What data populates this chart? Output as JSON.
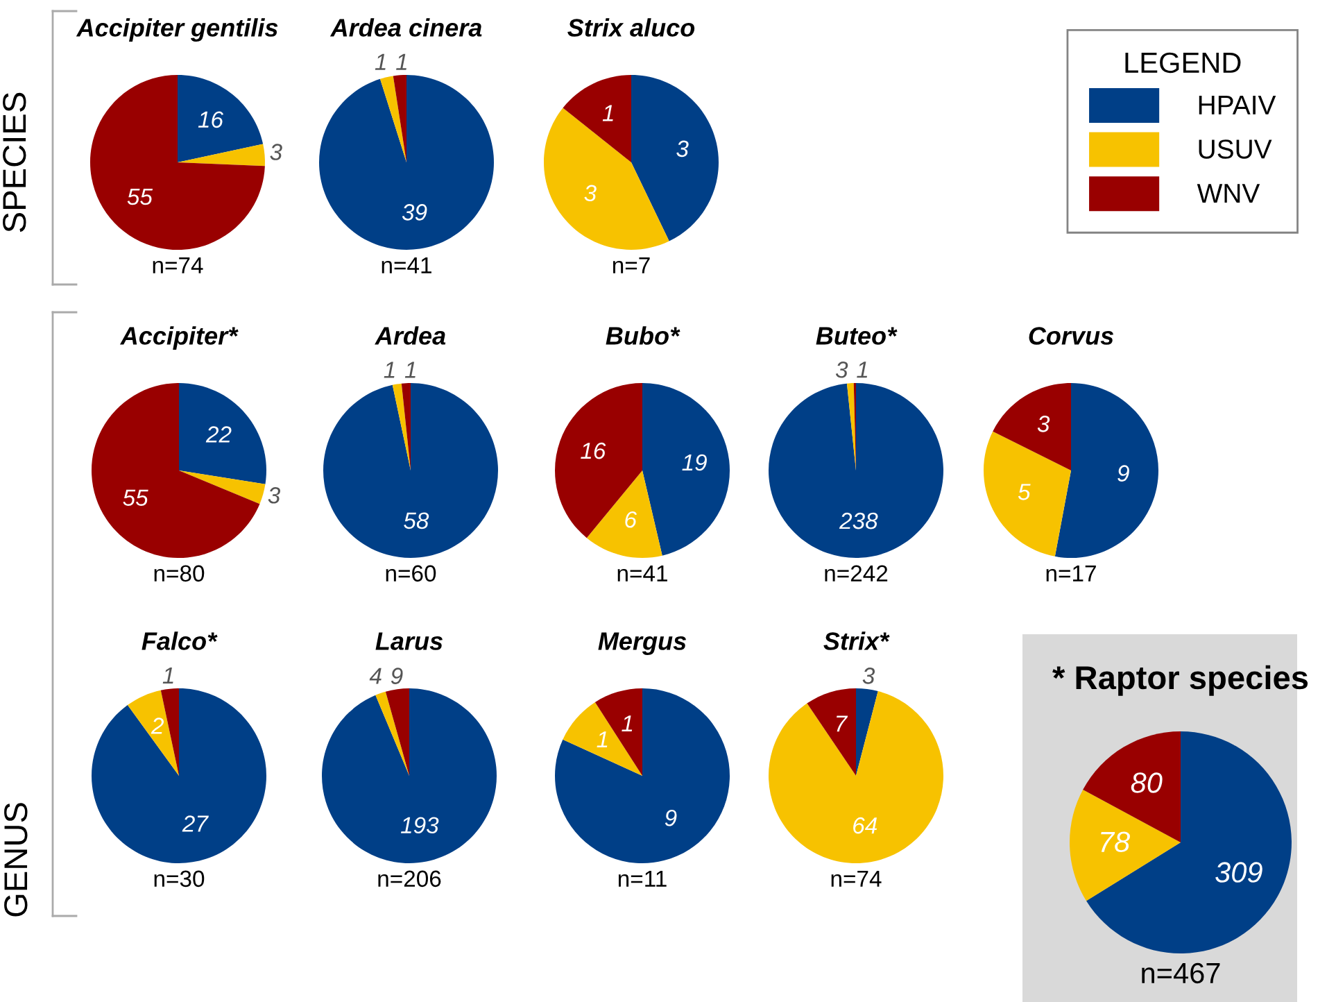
{
  "chart_data": [
    {
      "type": "pie",
      "title": "Accipiter gentilis",
      "ylabel": "SPECIES",
      "categories": [
        "HPAIV",
        "USUV",
        "WNV"
      ],
      "values": [
        16,
        3,
        55
      ],
      "colors": [
        "#003f87",
        "#f7c200",
        "#990000"
      ],
      "data_labels": true,
      "annotations": [
        "n=74"
      ],
      "legend": "right",
      "legend_title": "LEGEND"
    },
    {
      "type": "pie",
      "title": "Ardea cinera",
      "categories": [
        null,
        null,
        null
      ],
      "values": [
        39,
        1,
        1
      ],
      "colors": [
        "#003f87",
        "#f7c200",
        "#990000"
      ],
      "data_labels": true,
      "annotations": [
        "n=41"
      ]
    },
    {
      "type": "pie",
      "title": "Strix aluco",
      "categories": [
        null,
        null,
        null
      ],
      "values": [
        3,
        3,
        1
      ],
      "colors": [
        "#003f87",
        "#f7c200",
        "#990000"
      ],
      "data_labels": true,
      "annotations": [
        "n=7"
      ]
    },
    {
      "type": "pie",
      "title": "Accipiter*",
      "categories": [
        null,
        null,
        null
      ],
      "values": [
        22,
        3,
        55
      ],
      "colors": [
        "#003f87",
        "#f7c200",
        "#990000"
      ],
      "data_labels": true,
      "annotations": [
        "n=80"
      ]
    },
    {
      "type": "pie",
      "title": "Ardea",
      "categories": [
        null,
        null,
        null
      ],
      "values": [
        58,
        1,
        1
      ],
      "colors": [
        "#003f87",
        "#f7c200",
        "#990000"
      ],
      "data_labels": true,
      "annotations": [
        "n=60"
      ]
    },
    {
      "type": "pie",
      "title": "Bubo*",
      "categories": [
        null,
        null,
        null
      ],
      "values": [
        19,
        6,
        16
      ],
      "colors": [
        "#003f87",
        "#f7c200",
        "#990000"
      ],
      "data_labels": true,
      "annotations": [
        "n=41"
      ]
    },
    {
      "type": "pie",
      "title": "Buteo*",
      "categories": [
        null,
        null,
        null
      ],
      "values": [
        238,
        3,
        1
      ],
      "colors": [
        "#003f87",
        "#f7c200",
        "#990000"
      ],
      "data_labels": true,
      "annotations": [
        "n=242"
      ]
    },
    {
      "type": "pie",
      "title": "Corvus",
      "categories": [
        null,
        null,
        null
      ],
      "values": [
        9,
        5,
        3
      ],
      "colors": [
        "#003f87",
        "#f7c200",
        "#990000"
      ],
      "data_labels": true,
      "annotations": [
        "n=17"
      ]
    },
    {
      "type": "pie",
      "title": "Falco*",
      "ylabel": "GENUS",
      "categories": [
        null,
        null,
        null
      ],
      "values": [
        27,
        2,
        1
      ],
      "colors": [
        "#003f87",
        "#f7c200",
        "#990000"
      ],
      "data_labels": true,
      "annotations": [
        "n=30"
      ]
    },
    {
      "type": "pie",
      "title": "Larus",
      "categories": [
        null,
        null,
        null
      ],
      "values": [
        193,
        4,
        9
      ],
      "colors": [
        "#003f87",
        "#f7c200",
        "#990000"
      ],
      "data_labels": true,
      "annotations": [
        "n=206"
      ]
    },
    {
      "type": "pie",
      "title": "Mergus",
      "categories": [
        null,
        null,
        null
      ],
      "values": [
        9,
        1,
        1
      ],
      "colors": [
        "#003f87",
        "#f7c200",
        "#990000"
      ],
      "data_labels": true,
      "annotations": [
        "n=11"
      ]
    },
    {
      "type": "pie",
      "title": "Strix*",
      "categories": [
        null,
        null,
        null
      ],
      "values": [
        3,
        64,
        7
      ],
      "colors": [
        "#003f87",
        "#f7c200",
        "#990000"
      ],
      "data_labels": true,
      "annotations": [
        "n=74"
      ]
    },
    {
      "type": "pie",
      "title": "* Raptor species",
      "categories": [
        null,
        null,
        null
      ],
      "values": [
        309,
        78,
        80
      ],
      "colors": [
        "#003f87",
        "#f7c200",
        "#990000"
      ],
      "data_labels": true,
      "annotations": [
        "n=467"
      ]
    }
  ]
}
